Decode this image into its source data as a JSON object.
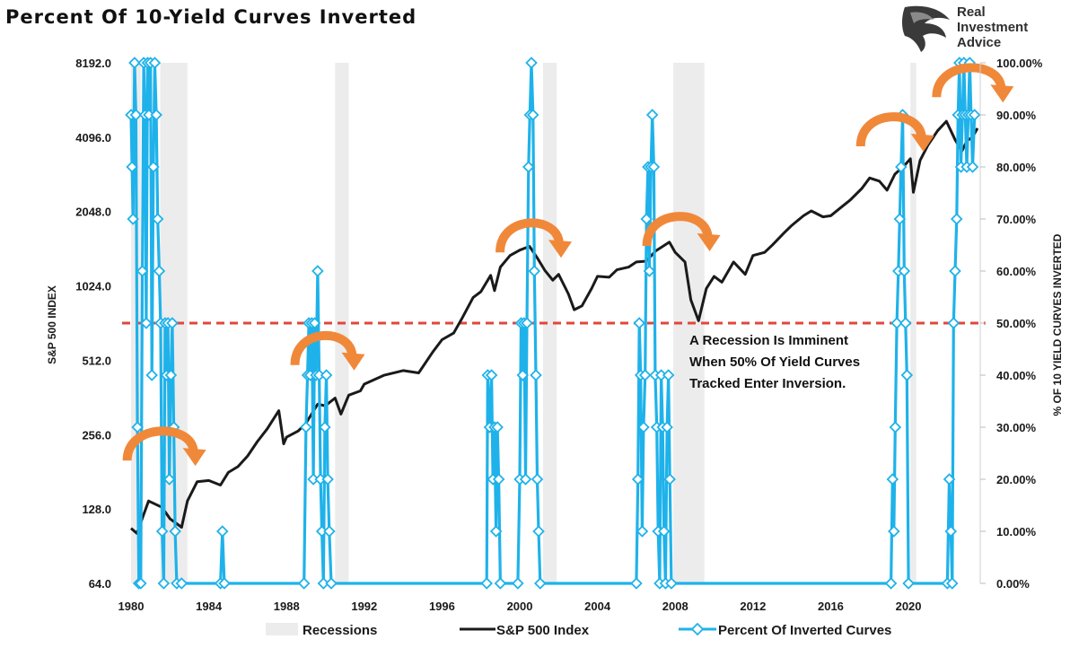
{
  "chart_data": {
    "type": "line",
    "title": "Percent Of 10-Yield Curves Inverted",
    "brand": [
      "Real",
      "Investment",
      "Advice"
    ],
    "left_axis": {
      "label": "S&P 500 INDEX",
      "scale": "log2",
      "range": [
        64,
        8192
      ],
      "ticks": [
        "8192.0",
        "4096.0",
        "2048.0",
        "1024.0",
        "512.0",
        "256.0",
        "128.0",
        "64.0"
      ]
    },
    "right_axis": {
      "label": "% OF 10 YIELD CURVES INVERTED",
      "range": [
        0,
        100
      ],
      "ticks": [
        "100.00%",
        "90.00%",
        "80.00%",
        "70.00%",
        "60.00%",
        "50.00%",
        "40.00%",
        "30.00%",
        "20.00%",
        "10.00%",
        "0.00%"
      ]
    },
    "x_axis": {
      "range": [
        1980,
        2023.6
      ],
      "ticks": [
        "1980",
        "1984",
        "1988",
        "1992",
        "1996",
        "2000",
        "2004",
        "2008",
        "2012",
        "2016",
        "2020"
      ]
    },
    "recessions": [
      [
        1980.0,
        1980.5
      ],
      [
        1981.5,
        1982.9
      ],
      [
        1990.5,
        1991.2
      ],
      [
        2001.2,
        2001.9
      ],
      [
        2007.9,
        2009.5
      ],
      [
        2020.1,
        2020.4
      ]
    ],
    "threshold": 50,
    "annotation": [
      "A Recession Is Imminent",
      "When 50% Of Yield Curves",
      "Tracked Enter Inversion."
    ],
    "legend": [
      "Recessions",
      "S&P 500 Index",
      "Percent Of Inverted Curves"
    ],
    "colors": {
      "sp500": "#1a1a1a",
      "inverted": "#1fb2ea",
      "threshold": "#e0473c",
      "recession": "#ececec",
      "arrow": "#f0883a"
    },
    "series": [
      {
        "name": "S&P 500 Index",
        "axis": "left",
        "points": [
          [
            1980.0,
            107
          ],
          [
            1980.3,
            102
          ],
          [
            1980.9,
            138
          ],
          [
            1981.6,
            130
          ],
          [
            1982.0,
            117
          ],
          [
            1982.6,
            108
          ],
          [
            1982.9,
            138
          ],
          [
            1983.4,
            165
          ],
          [
            1984.0,
            167
          ],
          [
            1984.6,
            160
          ],
          [
            1985.0,
            180
          ],
          [
            1985.5,
            190
          ],
          [
            1986.0,
            210
          ],
          [
            1986.5,
            240
          ],
          [
            1987.0,
            270
          ],
          [
            1987.6,
            320
          ],
          [
            1987.85,
            235
          ],
          [
            1988.0,
            250
          ],
          [
            1988.6,
            265
          ],
          [
            1989.0,
            285
          ],
          [
            1989.6,
            340
          ],
          [
            1990.0,
            335
          ],
          [
            1990.5,
            360
          ],
          [
            1990.8,
            310
          ],
          [
            1991.2,
            370
          ],
          [
            1991.8,
            385
          ],
          [
            1992.0,
            410
          ],
          [
            1993.0,
            445
          ],
          [
            1994.0,
            465
          ],
          [
            1994.8,
            455
          ],
          [
            1995.5,
            550
          ],
          [
            1996.0,
            620
          ],
          [
            1996.6,
            660
          ],
          [
            1997.0,
            750
          ],
          [
            1997.6,
            920
          ],
          [
            1998.0,
            970
          ],
          [
            1998.5,
            1130
          ],
          [
            1998.7,
            980
          ],
          [
            1999.0,
            1220
          ],
          [
            1999.5,
            1360
          ],
          [
            2000.0,
            1430
          ],
          [
            2000.5,
            1480
          ],
          [
            2000.9,
            1330
          ],
          [
            2001.3,
            1180
          ],
          [
            2001.7,
            1080
          ],
          [
            2002.0,
            1140
          ],
          [
            2002.5,
            950
          ],
          [
            2002.8,
            820
          ],
          [
            2003.2,
            850
          ],
          [
            2003.7,
            1000
          ],
          [
            2004.0,
            1120
          ],
          [
            2004.6,
            1110
          ],
          [
            2005.0,
            1190
          ],
          [
            2005.6,
            1220
          ],
          [
            2006.0,
            1280
          ],
          [
            2006.5,
            1290
          ],
          [
            2007.0,
            1420
          ],
          [
            2007.7,
            1540
          ],
          [
            2008.0,
            1400
          ],
          [
            2008.5,
            1280
          ],
          [
            2008.8,
            900
          ],
          [
            2009.2,
            740
          ],
          [
            2009.6,
            1000
          ],
          [
            2010.0,
            1120
          ],
          [
            2010.4,
            1060
          ],
          [
            2011.0,
            1280
          ],
          [
            2011.6,
            1140
          ],
          [
            2012.0,
            1360
          ],
          [
            2012.6,
            1400
          ],
          [
            2013.0,
            1500
          ],
          [
            2013.6,
            1680
          ],
          [
            2014.0,
            1800
          ],
          [
            2014.6,
            1970
          ],
          [
            2015.0,
            2060
          ],
          [
            2015.6,
            1950
          ],
          [
            2016.0,
            1970
          ],
          [
            2016.5,
            2120
          ],
          [
            2017.0,
            2280
          ],
          [
            2017.6,
            2540
          ],
          [
            2018.0,
            2800
          ],
          [
            2018.5,
            2720
          ],
          [
            2018.9,
            2500
          ],
          [
            2019.3,
            2900
          ],
          [
            2019.8,
            3150
          ],
          [
            2020.1,
            3350
          ],
          [
            2020.25,
            2450
          ],
          [
            2020.6,
            3300
          ],
          [
            2021.0,
            3800
          ],
          [
            2021.5,
            4350
          ],
          [
            2021.95,
            4750
          ],
          [
            2022.4,
            4000
          ],
          [
            2022.75,
            3600
          ],
          [
            2023.0,
            3950
          ],
          [
            2023.3,
            4100
          ],
          [
            2023.55,
            4450
          ]
        ]
      },
      {
        "name": "Percent Of Inverted Curves",
        "axis": "right",
        "points": [
          [
            1980.0,
            90
          ],
          [
            1980.05,
            80
          ],
          [
            1980.1,
            70
          ],
          [
            1980.18,
            100
          ],
          [
            1980.25,
            90
          ],
          [
            1980.33,
            30
          ],
          [
            1980.4,
            0
          ],
          [
            1980.5,
            0
          ],
          [
            1980.58,
            60
          ],
          [
            1980.65,
            100
          ],
          [
            1980.72,
            90
          ],
          [
            1980.78,
            50
          ],
          [
            1980.85,
            100
          ],
          [
            1980.92,
            90
          ],
          [
            1981.0,
            100
          ],
          [
            1981.07,
            40
          ],
          [
            1981.15,
            80
          ],
          [
            1981.22,
            100
          ],
          [
            1981.3,
            90
          ],
          [
            1981.37,
            70
          ],
          [
            1981.45,
            60
          ],
          [
            1981.52,
            50
          ],
          [
            1981.6,
            10
          ],
          [
            1981.68,
            0
          ],
          [
            1981.75,
            50
          ],
          [
            1981.82,
            40
          ],
          [
            1981.9,
            50
          ],
          [
            1981.97,
            20
          ],
          [
            1982.05,
            40
          ],
          [
            1982.12,
            50
          ],
          [
            1982.2,
            30
          ],
          [
            1982.27,
            10
          ],
          [
            1982.35,
            0
          ],
          [
            1982.6,
            0
          ],
          [
            1984.6,
            0
          ],
          [
            1984.7,
            10
          ],
          [
            1984.8,
            0
          ],
          [
            1988.9,
            0
          ],
          [
            1989.0,
            30
          ],
          [
            1989.08,
            40
          ],
          [
            1989.15,
            50
          ],
          [
            1989.22,
            40
          ],
          [
            1989.3,
            50
          ],
          [
            1989.38,
            20
          ],
          [
            1989.45,
            50
          ],
          [
            1989.52,
            40
          ],
          [
            1989.6,
            60
          ],
          [
            1989.68,
            40
          ],
          [
            1989.75,
            20
          ],
          [
            1989.82,
            10
          ],
          [
            1989.9,
            0
          ],
          [
            1989.97,
            30
          ],
          [
            1990.05,
            40
          ],
          [
            1990.12,
            20
          ],
          [
            1990.2,
            10
          ],
          [
            1990.3,
            0
          ],
          [
            1998.3,
            0
          ],
          [
            1998.35,
            40
          ],
          [
            1998.45,
            30
          ],
          [
            1998.55,
            40
          ],
          [
            1998.62,
            20
          ],
          [
            1998.7,
            30
          ],
          [
            1998.78,
            10
          ],
          [
            1998.85,
            30
          ],
          [
            1998.92,
            20
          ],
          [
            1999.0,
            0
          ],
          [
            1999.9,
            0
          ],
          [
            2000.0,
            20
          ],
          [
            2000.07,
            50
          ],
          [
            2000.15,
            40
          ],
          [
            2000.22,
            50
          ],
          [
            2000.3,
            20
          ],
          [
            2000.37,
            50
          ],
          [
            2000.45,
            80
          ],
          [
            2000.52,
            90
          ],
          [
            2000.6,
            100
          ],
          [
            2000.68,
            90
          ],
          [
            2000.75,
            60
          ],
          [
            2000.83,
            40
          ],
          [
            2000.9,
            20
          ],
          [
            2000.97,
            10
          ],
          [
            2001.05,
            0
          ],
          [
            2006.0,
            0
          ],
          [
            2006.08,
            20
          ],
          [
            2006.15,
            50
          ],
          [
            2006.22,
            40
          ],
          [
            2006.3,
            10
          ],
          [
            2006.37,
            30
          ],
          [
            2006.45,
            40
          ],
          [
            2006.52,
            70
          ],
          [
            2006.6,
            80
          ],
          [
            2006.67,
            60
          ],
          [
            2006.75,
            80
          ],
          [
            2006.82,
            90
          ],
          [
            2006.9,
            80
          ],
          [
            2006.97,
            40
          ],
          [
            2007.05,
            30
          ],
          [
            2007.12,
            10
          ],
          [
            2007.2,
            0
          ],
          [
            2007.28,
            40
          ],
          [
            2007.35,
            30
          ],
          [
            2007.42,
            10
          ],
          [
            2007.5,
            0
          ],
          [
            2007.58,
            30
          ],
          [
            2007.65,
            40
          ],
          [
            2007.72,
            20
          ],
          [
            2007.8,
            0
          ],
          [
            2019.1,
            0
          ],
          [
            2019.18,
            20
          ],
          [
            2019.25,
            10
          ],
          [
            2019.32,
            30
          ],
          [
            2019.4,
            50
          ],
          [
            2019.48,
            60
          ],
          [
            2019.55,
            70
          ],
          [
            2019.62,
            80
          ],
          [
            2019.7,
            90
          ],
          [
            2019.78,
            60
          ],
          [
            2019.85,
            50
          ],
          [
            2019.92,
            40
          ],
          [
            2020.0,
            0
          ],
          [
            2022.0,
            0
          ],
          [
            2022.1,
            20
          ],
          [
            2022.18,
            10
          ],
          [
            2022.25,
            0
          ],
          [
            2022.32,
            50
          ],
          [
            2022.4,
            60
          ],
          [
            2022.48,
            70
          ],
          [
            2022.55,
            90
          ],
          [
            2022.62,
            100
          ],
          [
            2022.7,
            80
          ],
          [
            2022.78,
            90
          ],
          [
            2022.85,
            100
          ],
          [
            2022.92,
            90
          ],
          [
            2023.0,
            80
          ],
          [
            2023.08,
            90
          ],
          [
            2023.15,
            100
          ],
          [
            2023.22,
            90
          ],
          [
            2023.3,
            80
          ],
          [
            2023.4,
            90
          ]
        ]
      }
    ]
  }
}
